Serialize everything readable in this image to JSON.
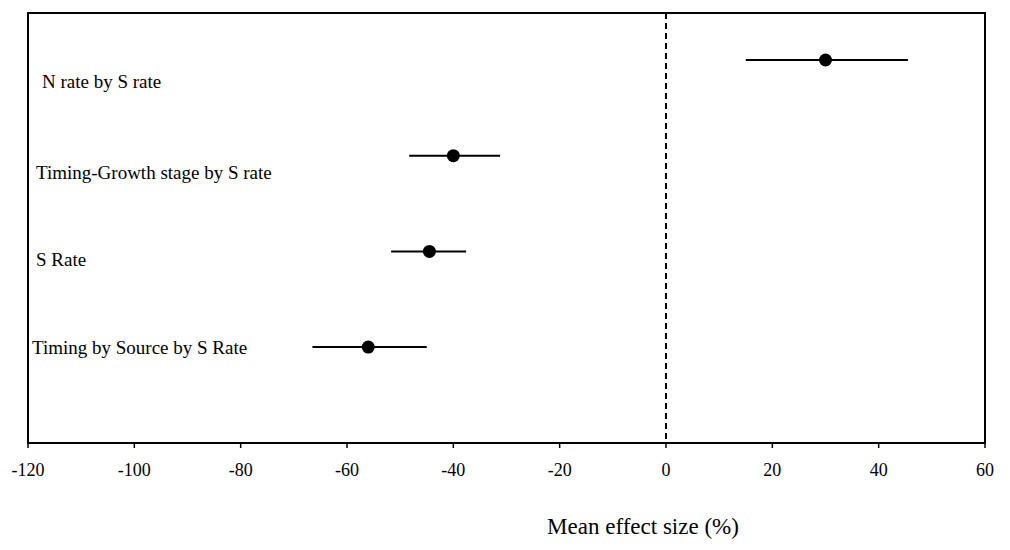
{
  "chart_data": {
    "type": "forest",
    "orientation": "horizontal",
    "categories": [
      "N rate by S rate",
      "Timing-Growth stage by S rate",
      "S Rate",
      "Timing by Source by S Rate"
    ],
    "values": [
      30,
      -40,
      -44.5,
      -56
    ],
    "error_low": [
      15,
      -48.3,
      -51.7,
      -66.5
    ],
    "error_high": [
      45.5,
      -31.2,
      -37.6,
      -45
    ],
    "reference_line": 0,
    "color": "#000000",
    "marker": "circle",
    "xlabel": "Mean effect size (%)",
    "xlim": [
      -120,
      60
    ],
    "xticks": [
      -120,
      -100,
      -80,
      -60,
      -40,
      -20,
      0,
      20,
      40,
      60
    ],
    "tick_labels": "x",
    "grid": false
  }
}
